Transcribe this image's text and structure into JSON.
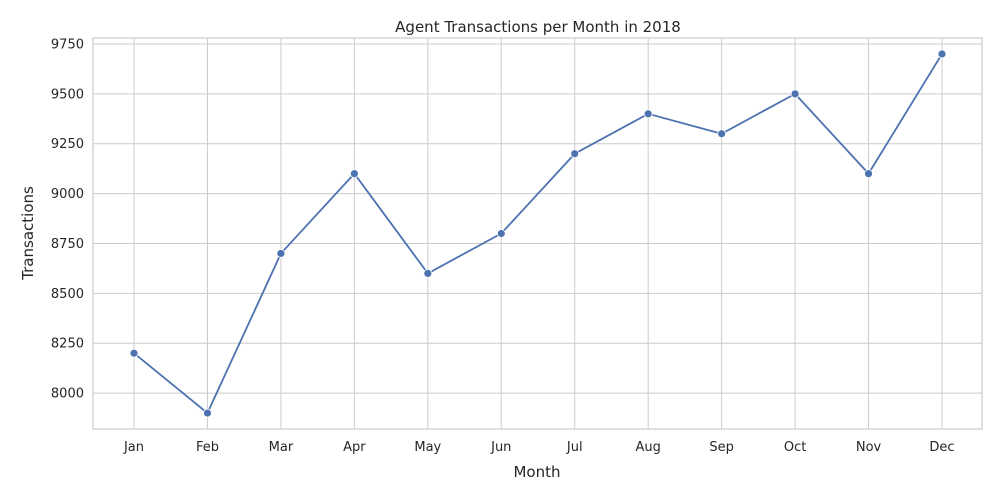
{
  "chart_data": {
    "type": "line",
    "title": "Agent Transactions per Month in 2018",
    "xlabel": "Month",
    "ylabel": "Transactions",
    "categories": [
      "Jan",
      "Feb",
      "Mar",
      "Apr",
      "May",
      "Jun",
      "Jul",
      "Aug",
      "Sep",
      "Oct",
      "Nov",
      "Dec"
    ],
    "series": [
      {
        "values": [
          8200,
          7900,
          8700,
          9100,
          8600,
          8800,
          9200,
          9400,
          9300,
          9500,
          9100,
          9700
        ]
      }
    ],
    "ylim": [
      7820,
      9780
    ],
    "yticks": [
      "8000",
      "8250",
      "8500",
      "8750",
      "9000",
      "9250",
      "9500",
      "9750"
    ],
    "grid": true,
    "marker": "circle",
    "color": "#4c72b0"
  }
}
